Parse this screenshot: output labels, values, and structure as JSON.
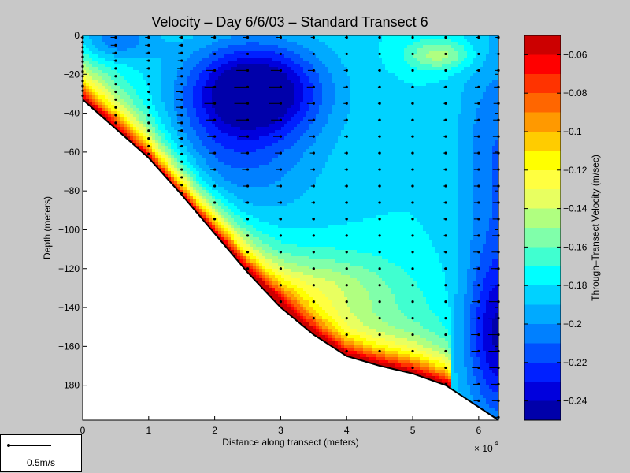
{
  "chart_data": {
    "type": "heatmap",
    "title": "Velocity – Day 6/6/03 – Standard Transect 6",
    "xlabel": "Distance along transect (meters)",
    "ylabel": "Depth (meters)",
    "x_exponent_label": "× 10",
    "x_exponent_power": "4",
    "xlim": [
      0,
      6.3
    ],
    "ylim": [
      -198,
      0
    ],
    "x_ticks": [
      {
        "value": 0,
        "label": "0"
      },
      {
        "value": 1,
        "label": "1"
      },
      {
        "value": 2,
        "label": "2"
      },
      {
        "value": 3,
        "label": "3"
      },
      {
        "value": 4,
        "label": "4"
      },
      {
        "value": 5,
        "label": "5"
      },
      {
        "value": 6,
        "label": "6"
      }
    ],
    "y_ticks": [
      {
        "value": 0,
        "label": "0"
      },
      {
        "value": -20,
        "label": "−20"
      },
      {
        "value": -40,
        "label": "−40"
      },
      {
        "value": -60,
        "label": "−60"
      },
      {
        "value": -80,
        "label": "−80"
      },
      {
        "value": -100,
        "label": "−100"
      },
      {
        "value": -120,
        "label": "−120"
      },
      {
        "value": -140,
        "label": "−140"
      },
      {
        "value": -160,
        "label": "−160"
      },
      {
        "value": -180,
        "label": "−180"
      }
    ],
    "bottom_profile": [
      [
        0,
        -33
      ],
      [
        0.5,
        -48
      ],
      [
        1,
        -63
      ],
      [
        1.5,
        -82
      ],
      [
        2,
        -102
      ],
      [
        2.5,
        -122
      ],
      [
        3,
        -140
      ],
      [
        3.5,
        -154
      ],
      [
        4,
        -165
      ],
      [
        4.5,
        -170
      ],
      [
        5,
        -174
      ],
      [
        5.5,
        -180
      ],
      [
        6.3,
        -198
      ]
    ],
    "colorbar": {
      "label": "Through–Transect Velocity (m/sec)",
      "range": [
        -0.25,
        -0.05
      ],
      "levels": [
        {
          "min": -0.25,
          "max": -0.24,
          "color": "#0000aa"
        },
        {
          "min": -0.24,
          "max": -0.23,
          "color": "#0000dd"
        },
        {
          "min": -0.23,
          "max": -0.22,
          "color": "#0020ff"
        },
        {
          "min": -0.22,
          "max": -0.21,
          "color": "#0050ff"
        },
        {
          "min": -0.21,
          "max": -0.2,
          "color": "#0080ff"
        },
        {
          "min": -0.2,
          "max": -0.19,
          "color": "#00aaff"
        },
        {
          "min": -0.19,
          "max": -0.18,
          "color": "#00d2ff"
        },
        {
          "min": -0.18,
          "max": -0.17,
          "color": "#00ffff"
        },
        {
          "min": -0.17,
          "max": -0.16,
          "color": "#40ffd0"
        },
        {
          "min": -0.16,
          "max": -0.15,
          "color": "#80ffaa"
        },
        {
          "min": -0.15,
          "max": -0.14,
          "color": "#b0ff80"
        },
        {
          "min": -0.14,
          "max": -0.13,
          "color": "#e8ff60"
        },
        {
          "min": -0.13,
          "max": -0.12,
          "color": "#ffff40"
        },
        {
          "min": -0.12,
          "max": -0.11,
          "color": "#ffff00"
        },
        {
          "min": -0.11,
          "max": -0.1,
          "color": "#ffcc00"
        },
        {
          "min": -0.1,
          "max": -0.09,
          "color": "#ff9900"
        },
        {
          "min": -0.09,
          "max": -0.08,
          "color": "#ff6600"
        },
        {
          "min": -0.08,
          "max": -0.07,
          "color": "#ff3300"
        },
        {
          "min": -0.07,
          "max": -0.06,
          "color": "#ff0000"
        },
        {
          "min": -0.06,
          "max": -0.05,
          "color": "#cc0000"
        }
      ],
      "ticks": [
        {
          "value": -0.06,
          "label": "−0.06"
        },
        {
          "value": -0.08,
          "label": "−0.08"
        },
        {
          "value": -0.1,
          "label": "−0.1"
        },
        {
          "value": -0.12,
          "label": "−0.12"
        },
        {
          "value": -0.14,
          "label": "−0.14"
        },
        {
          "value": -0.16,
          "label": "−0.16"
        },
        {
          "value": -0.18,
          "label": "−0.18"
        },
        {
          "value": -0.2,
          "label": "−0.2"
        },
        {
          "value": -0.22,
          "label": "−0.22"
        },
        {
          "value": -0.24,
          "label": "−0.24"
        }
      ]
    },
    "stations_x": [
      0,
      0.5,
      1,
      1.5,
      2,
      2.5,
      3,
      3.5,
      4,
      4.5,
      5,
      5.5,
      6,
      6.3
    ],
    "grid": false
  },
  "scale_legend": {
    "label": "0.5m/s",
    "value_m_per_s": 0.5
  },
  "colors": {
    "background": "#c8c8c8",
    "plot_background": "#ffffff",
    "arrow": "#000000"
  }
}
